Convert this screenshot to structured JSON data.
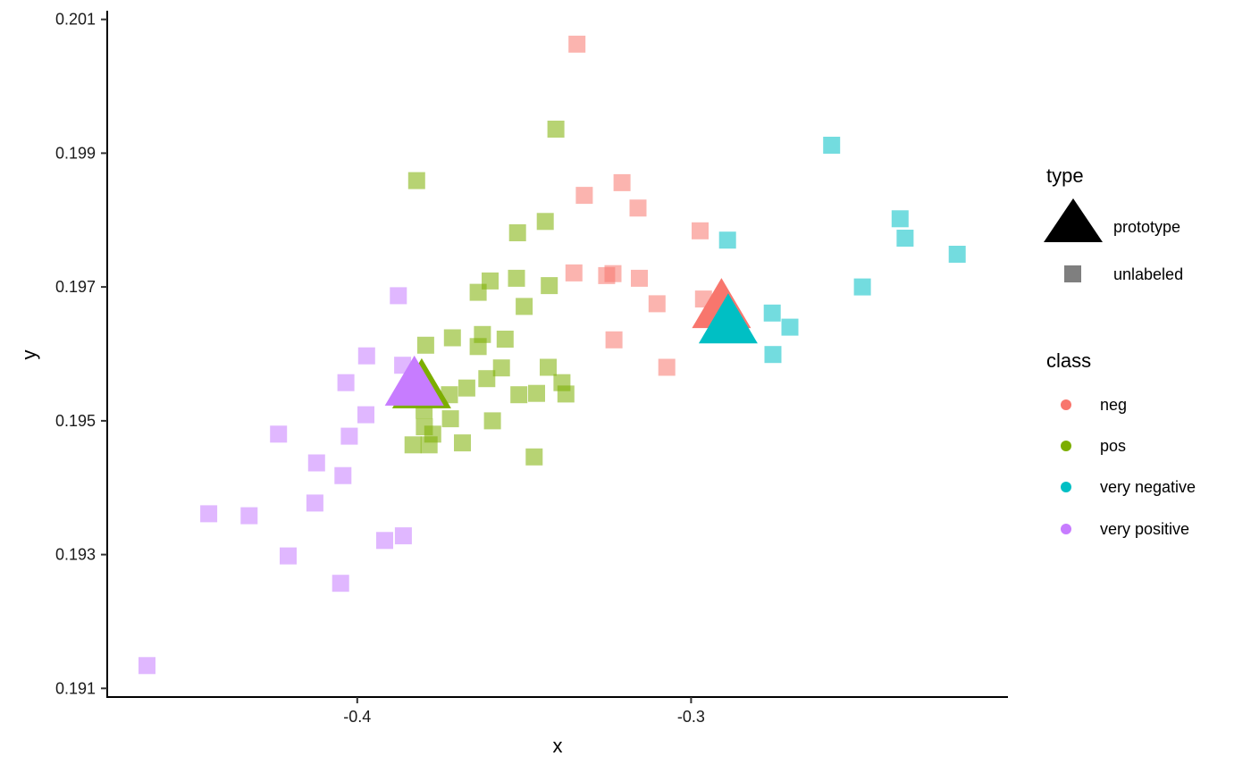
{
  "chart_data": {
    "type": "scatter",
    "xlabel": "x",
    "ylabel": "y",
    "xlim": [
      -0.4749,
      -0.2051
    ],
    "ylim": [
      0.19087,
      0.20113
    ],
    "x_ticks": [
      {
        "value": -0.4,
        "label": "-0.4"
      },
      {
        "value": -0.3,
        "label": "-0.3"
      }
    ],
    "y_ticks": [
      {
        "value": 0.191,
        "label": "0.191"
      },
      {
        "value": 0.193,
        "label": "0.193"
      },
      {
        "value": 0.195,
        "label": "0.195"
      },
      {
        "value": 0.197,
        "label": "0.197"
      },
      {
        "value": 0.199,
        "label": "0.199"
      },
      {
        "value": 0.201,
        "label": "0.201"
      }
    ],
    "grid": false,
    "legend_placement": "right",
    "legend": {
      "type": {
        "title": "type",
        "items": [
          {
            "label": "prototype",
            "shape": "triangle"
          },
          {
            "label": "unlabeled",
            "shape": "square"
          }
        ]
      },
      "class": {
        "title": "class",
        "items": [
          {
            "label": "neg",
            "color": "#F8766D"
          },
          {
            "label": "pos",
            "color": "#7CAE00"
          },
          {
            "label": "very negative",
            "color": "#00BFC4"
          },
          {
            "label": "very positive",
            "color": "#C77CFF"
          }
        ]
      }
    },
    "series": [
      {
        "class": "neg",
        "color": "#F8766D",
        "type": "unlabeled",
        "points": [
          [
            -0.3342,
            0.20063
          ],
          [
            -0.3207,
            0.19856
          ],
          [
            -0.332,
            0.19837
          ],
          [
            -0.3159,
            0.19818
          ],
          [
            -0.2973,
            0.19784
          ],
          [
            -0.3351,
            0.19721
          ],
          [
            -0.3234,
            0.1972
          ],
          [
            -0.3253,
            0.19717
          ],
          [
            -0.3155,
            0.19713
          ],
          [
            -0.2963,
            0.19682
          ],
          [
            -0.3102,
            0.19675
          ],
          [
            -0.3231,
            0.19621
          ],
          [
            -0.3073,
            0.1958
          ]
        ]
      },
      {
        "class": "pos",
        "color": "#7CAE00",
        "type": "unlabeled",
        "points": [
          [
            -0.3405,
            0.19936
          ],
          [
            -0.3822,
            0.19859
          ],
          [
            -0.3437,
            0.19798
          ],
          [
            -0.352,
            0.19781
          ],
          [
            -0.3602,
            0.19709
          ],
          [
            -0.3523,
            0.19713
          ],
          [
            -0.3425,
            0.19702
          ],
          [
            -0.3638,
            0.19692
          ],
          [
            -0.35,
            0.19671
          ],
          [
            -0.3795,
            0.19613
          ],
          [
            -0.3715,
            0.19624
          ],
          [
            -0.3625,
            0.19629
          ],
          [
            -0.3557,
            0.19622
          ],
          [
            -0.3638,
            0.19611
          ],
          [
            -0.3568,
            0.19579
          ],
          [
            -0.3428,
            0.1958
          ],
          [
            -0.3612,
            0.19563
          ],
          [
            -0.3387,
            0.19557
          ],
          [
            -0.3672,
            0.19549
          ],
          [
            -0.3724,
            0.19539
          ],
          [
            -0.3516,
            0.19539
          ],
          [
            -0.3463,
            0.19541
          ],
          [
            -0.3375,
            0.1954
          ],
          [
            -0.3798,
            0.19532
          ],
          [
            -0.38,
            0.19516
          ],
          [
            -0.3721,
            0.19503
          ],
          [
            -0.3799,
            0.19491
          ],
          [
            -0.3595,
            0.195
          ],
          [
            -0.3774,
            0.1948
          ],
          [
            -0.3833,
            0.19464
          ],
          [
            -0.3785,
            0.19464
          ],
          [
            -0.3685,
            0.19467
          ],
          [
            -0.347,
            0.19446
          ]
        ]
      },
      {
        "class": "very negative",
        "color": "#00BFC4",
        "type": "unlabeled",
        "points": [
          [
            -0.2579,
            0.19912
          ],
          [
            -0.2374,
            0.19802
          ],
          [
            -0.2359,
            0.19773
          ],
          [
            -0.2891,
            0.1977
          ],
          [
            -0.2203,
            0.19749
          ],
          [
            -0.2487,
            0.197
          ],
          [
            -0.2757,
            0.19661
          ],
          [
            -0.2704,
            0.1964
          ],
          [
            -0.2755,
            0.19599
          ]
        ]
      },
      {
        "class": "very positive",
        "color": "#C77CFF",
        "type": "unlabeled",
        "points": [
          [
            -0.3877,
            0.19687
          ],
          [
            -0.3972,
            0.19597
          ],
          [
            -0.3864,
            0.19583
          ],
          [
            -0.4034,
            0.19557
          ],
          [
            -0.3974,
            0.19509
          ],
          [
            -0.4236,
            0.1948
          ],
          [
            -0.4024,
            0.19477
          ],
          [
            -0.4122,
            0.19437
          ],
          [
            -0.4043,
            0.19418
          ],
          [
            -0.4127,
            0.19377
          ],
          [
            -0.4445,
            0.19361
          ],
          [
            -0.4324,
            0.19358
          ],
          [
            -0.3918,
            0.19321
          ],
          [
            -0.3862,
            0.19328
          ],
          [
            -0.4207,
            0.19298
          ],
          [
            -0.405,
            0.19257
          ],
          [
            -0.463,
            0.19134
          ]
        ]
      },
      {
        "class": "pos",
        "color": "#7CAE00",
        "type": "prototype",
        "points": [
          [
            -0.3807,
            0.19556
          ]
        ]
      },
      {
        "class": "very positive",
        "color": "#C77CFF",
        "type": "prototype",
        "points": [
          [
            -0.3829,
            0.1956
          ]
        ]
      },
      {
        "class": "neg",
        "color": "#F8766D",
        "type": "prototype",
        "points": [
          [
            -0.2909,
            0.19676
          ]
        ]
      },
      {
        "class": "very negative",
        "color": "#00BFC4",
        "type": "prototype",
        "points": [
          [
            -0.2889,
            0.19653
          ]
        ]
      }
    ]
  }
}
